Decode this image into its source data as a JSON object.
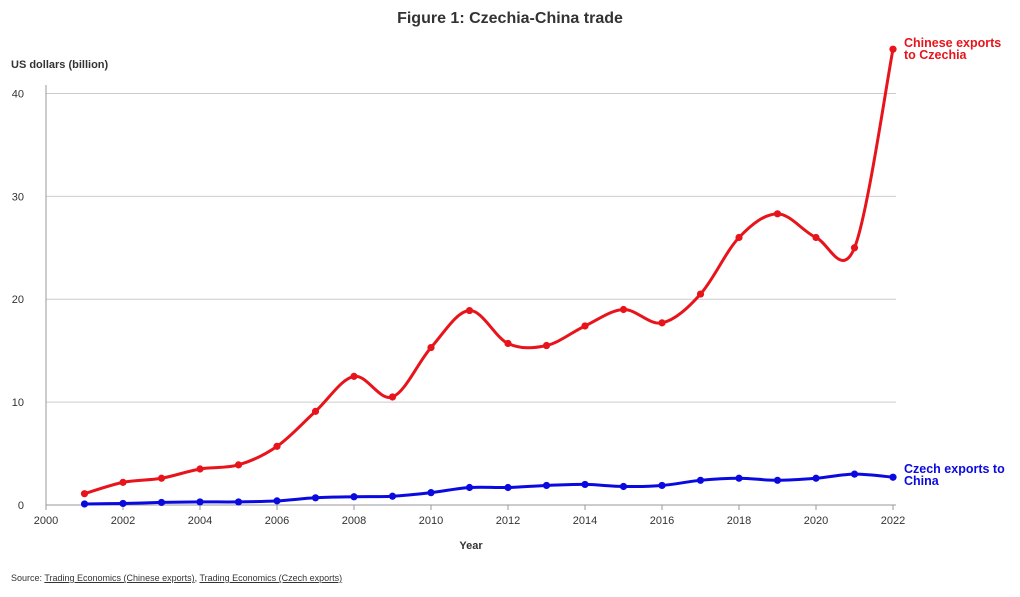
{
  "title": "Figure 1: Czechia-China trade",
  "source": {
    "prefix": "Source: ",
    "link1": "Trading Economics (Chinese exports)",
    "separator": ", ",
    "link2": "Trading Economics (Czech exports)"
  },
  "colors": {
    "red": "#e8141b",
    "blue": "#0a0ae0",
    "grid": "#cccccc",
    "axis": "#999999",
    "text": "#333333"
  },
  "chart_data": {
    "type": "line",
    "title": "Figure 1: Czechia-China trade",
    "xlabel": "Year",
    "ylabel": "US dollars (billion)",
    "xlim": [
      2000,
      2022
    ],
    "ylim": [
      0,
      45
    ],
    "x_ticks": [
      2000,
      2002,
      2004,
      2006,
      2008,
      2010,
      2012,
      2014,
      2016,
      2018,
      2020,
      2022
    ],
    "y_ticks": [
      0,
      10,
      20,
      30,
      40
    ],
    "grid": "horizontal",
    "x": [
      2001,
      2002,
      2003,
      2004,
      2005,
      2006,
      2007,
      2008,
      2009,
      2010,
      2011,
      2012,
      2013,
      2014,
      2015,
      2016,
      2017,
      2018,
      2019,
      2020,
      2021,
      2022
    ],
    "series": [
      {
        "label_lines": [
          "Chinese exports",
          "to Czechia"
        ],
        "color": "#e8141b",
        "values": [
          1.1,
          2.2,
          2.6,
          3.5,
          3.9,
          5.7,
          9.1,
          12.5,
          10.5,
          15.3,
          18.9,
          15.7,
          15.5,
          17.4,
          19.0,
          17.7,
          20.5,
          26.0,
          28.3,
          26.0,
          25.0,
          44.3
        ]
      },
      {
        "label_lines": [
          "Czech exports to",
          "China"
        ],
        "color": "#0a0ae0",
        "values": [
          0.1,
          0.15,
          0.25,
          0.3,
          0.3,
          0.4,
          0.7,
          0.8,
          0.85,
          1.2,
          1.7,
          1.7,
          1.9,
          2.0,
          1.8,
          1.9,
          2.4,
          2.6,
          2.4,
          2.6,
          3.0,
          2.7
        ]
      }
    ]
  }
}
